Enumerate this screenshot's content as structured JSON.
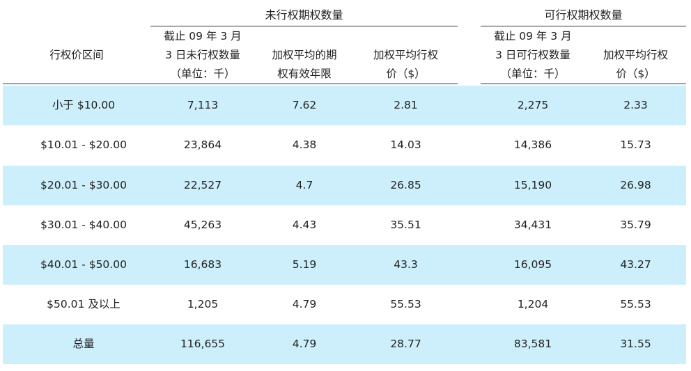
{
  "header": {
    "group_unexercised": "未行权期权数量",
    "group_exercisable": "可行权期权数量",
    "col_range": "行权价区间",
    "col_outstanding": [
      "截止 09 年 3 月",
      "3 日未行权数量",
      "（单位：千）"
    ],
    "col_life": [
      "加权平均的期",
      "权有效年限"
    ],
    "col_price": [
      "加权平均行权",
      "价（$）"
    ],
    "col_exercisable": [
      "截止 09 年 3 月",
      "3 日可行权数量",
      "（单位：千）"
    ],
    "col_ex_price": [
      "加权平均行权",
      "价（$）"
    ]
  },
  "rows": [
    {
      "range": "小于  $10.00",
      "outstanding": "7,113",
      "life": "7.62",
      "price": "2.81",
      "exercisable": "2,275",
      "ex_price": "2.33"
    },
    {
      "range": "$10.01 - $20.00",
      "outstanding": "23,864",
      "life": "4.38",
      "price": "14.03",
      "exercisable": "14,386",
      "ex_price": "15.73"
    },
    {
      "range": "$20.01 - $30.00",
      "outstanding": "22,527",
      "life": "4.7",
      "price": "26.85",
      "exercisable": "15,190",
      "ex_price": "26.98"
    },
    {
      "range": "$30.01 - $40.00",
      "outstanding": "45,263",
      "life": "4.43",
      "price": "35.51",
      "exercisable": "34,431",
      "ex_price": "35.79"
    },
    {
      "range": "$40.01 - $50.00",
      "outstanding": "16,683",
      "life": "5.19",
      "price": "43.3",
      "exercisable": "16,095",
      "ex_price": "43.27"
    },
    {
      "range": "$50.01  及以上",
      "outstanding": "1,205",
      "life": "4.79",
      "price": "55.53",
      "exercisable": "1,204",
      "ex_price": "55.53"
    },
    {
      "range": "总量",
      "outstanding": "116,655",
      "life": "4.79",
      "price": "28.77",
      "exercisable": "83,581",
      "ex_price": "31.55"
    }
  ],
  "colors": {
    "row_shade": "#cdeffc",
    "rule": "#333333"
  }
}
